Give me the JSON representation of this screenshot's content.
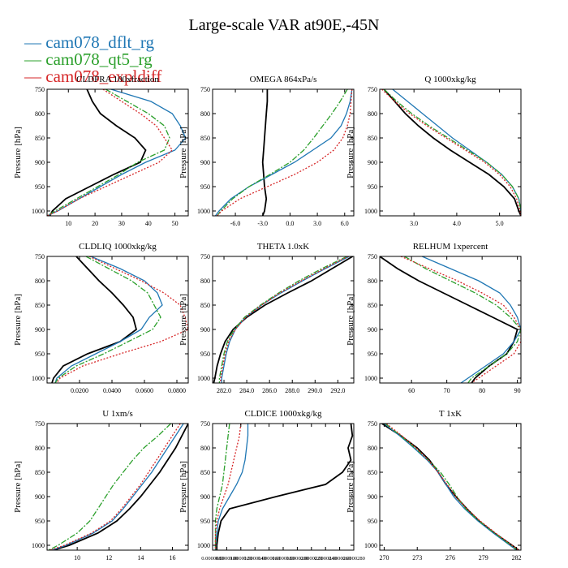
{
  "figure": {
    "title": "Large-scale VAR at90E,-45N",
    "ylabel": "Pressure [hPa]",
    "legend": [
      {
        "name": "cam078_dflt_rg",
        "color": "#1f77b4"
      },
      {
        "name": "cam078_qt5_rg",
        "color": "#2ca02c"
      },
      {
        "name": "cam078_expldiff",
        "color": "#d62728"
      }
    ]
  },
  "chart_data": [
    {
      "type": "line",
      "title": "CLDFRA  100xfraction",
      "ylabel": "Pressure [hPa]",
      "ylim": [
        1010,
        750
      ],
      "yticks": [
        750,
        800,
        850,
        900,
        950,
        1000
      ],
      "xlim": [
        2,
        55
      ],
      "xticks": [
        10,
        20,
        30,
        40,
        50
      ],
      "xticklabels": [
        "10",
        "20",
        "30",
        "40",
        "50"
      ],
      "y": [
        750,
        775,
        800,
        825,
        850,
        875,
        900,
        925,
        950,
        975,
        1000,
        1010
      ],
      "series": [
        {
          "name": "",
          "color": "#000000",
          "dash": "",
          "values": [
            17,
            19,
            22,
            28,
            35,
            39,
            37,
            27,
            18,
            9,
            4,
            3
          ]
        },
        {
          "name": "cam078_dflt_rg",
          "color": "#1f77b4",
          "dash": "",
          "values": [
            26,
            41,
            49,
            52,
            54,
            50,
            39,
            30,
            22,
            14,
            6,
            2
          ]
        },
        {
          "name": "cam078_qt5_rg",
          "color": "#2ca02c",
          "dash": "7,2,2,2",
          "values": [
            24,
            32,
            40,
            46,
            48,
            46,
            36,
            29,
            21,
            13,
            5,
            2
          ]
        },
        {
          "name": "cam078_expldiff",
          "color": "#d62728",
          "dash": "2,2",
          "values": [
            23,
            30,
            37,
            43,
            46,
            49,
            44,
            34,
            24,
            14,
            6,
            2
          ]
        }
      ]
    },
    {
      "type": "line",
      "title": "OMEGA  864xPa/s",
      "ylabel": "Pressure [hPa]",
      "ylim": [
        1010,
        750
      ],
      "yticks": [
        750,
        800,
        850,
        900,
        950,
        1000
      ],
      "xlim": [
        -8.5,
        7
      ],
      "xticks": [
        -6,
        -3,
        0,
        3,
        6
      ],
      "xticklabels": [
        "-6.0",
        "-3.0",
        "0.0",
        "3.0",
        "6.0"
      ],
      "y": [
        750,
        775,
        800,
        825,
        850,
        875,
        900,
        925,
        950,
        975,
        1000,
        1010
      ],
      "series": [
        {
          "name": "",
          "color": "#000000",
          "dash": "",
          "values": [
            -2.5,
            -2.5,
            -2.6,
            -2.7,
            -2.8,
            -2.9,
            -3.0,
            -2.9,
            -2.8,
            -2.6,
            -2.8,
            -3.0
          ]
        },
        {
          "name": "cam078_dflt_rg",
          "color": "#1f77b4",
          "dash": "",
          "values": [
            6.8,
            6.6,
            6.2,
            5.6,
            4.5,
            2.5,
            0.5,
            -2.0,
            -4.5,
            -6.5,
            -7.8,
            -8.2
          ]
        },
        {
          "name": "cam078_qt5_rg",
          "color": "#2ca02c",
          "dash": "7,2,2,2",
          "values": [
            6.3,
            5.5,
            4.6,
            3.6,
            2.6,
            1.5,
            0.0,
            -2.2,
            -4.5,
            -6.3,
            -7.6,
            -8.0
          ]
        },
        {
          "name": "cam078_expldiff",
          "color": "#d62728",
          "dash": "2,2",
          "values": [
            6.8,
            6.7,
            6.6,
            6.3,
            5.8,
            4.8,
            3.0,
            0.5,
            -2.5,
            -5.5,
            -7.5,
            -8.0
          ]
        }
      ]
    },
    {
      "type": "line",
      "title": "Q  1000xkg/kg",
      "ylabel": "Pressure [hPa]",
      "ylim": [
        1010,
        750
      ],
      "yticks": [
        750,
        800,
        850,
        900,
        950,
        1000
      ],
      "xlim": [
        2.2,
        5.5
      ],
      "xticks": [
        3.0,
        4.0,
        5.0
      ],
      "xticklabels": [
        "3.0",
        "4.0",
        "5.0"
      ],
      "y": [
        750,
        775,
        800,
        825,
        850,
        875,
        900,
        925,
        950,
        975,
        1000,
        1010
      ],
      "series": [
        {
          "name": "",
          "color": "#000000",
          "dash": "",
          "values": [
            2.3,
            2.55,
            2.8,
            3.1,
            3.45,
            3.85,
            4.3,
            4.75,
            5.1,
            5.35,
            5.45,
            5.5
          ]
        },
        {
          "name": "cam078_dflt_rg",
          "color": "#1f77b4",
          "dash": "",
          "values": [
            2.5,
            2.85,
            3.2,
            3.55,
            3.9,
            4.3,
            4.7,
            5.05,
            5.3,
            5.45,
            5.5,
            5.52
          ]
        },
        {
          "name": "cam078_qt5_rg",
          "color": "#2ca02c",
          "dash": "7,2,2,2",
          "values": [
            2.3,
            2.6,
            2.95,
            3.35,
            3.8,
            4.25,
            4.7,
            5.05,
            5.3,
            5.45,
            5.5,
            5.52
          ]
        },
        {
          "name": "cam078_expldiff",
          "color": "#d62728",
          "dash": "2,2",
          "values": [
            2.25,
            2.55,
            2.9,
            3.3,
            3.75,
            4.2,
            4.65,
            5.0,
            5.25,
            5.4,
            5.48,
            5.5
          ]
        }
      ]
    },
    {
      "type": "line",
      "title": "CLDLIQ  1000xkg/kg",
      "ylabel": "Pressure [hPa]",
      "ylim": [
        1010,
        750
      ],
      "yticks": [
        750,
        800,
        850,
        900,
        950,
        1000
      ],
      "xlim": [
        0.0,
        0.087
      ],
      "xticks": [
        0.02,
        0.04,
        0.06,
        0.08
      ],
      "xticklabels": [
        "0.0200",
        "0.0400",
        "0.0600",
        "0.0800"
      ],
      "y": [
        750,
        775,
        800,
        825,
        850,
        875,
        900,
        925,
        950,
        975,
        1000,
        1010
      ],
      "series": [
        {
          "name": "",
          "color": "#000000",
          "dash": "",
          "values": [
            0.018,
            0.025,
            0.032,
            0.04,
            0.047,
            0.053,
            0.055,
            0.045,
            0.025,
            0.01,
            0.004,
            0.003
          ]
        },
        {
          "name": "cam078_dflt_rg",
          "color": "#1f77b4",
          "dash": "",
          "values": [
            0.027,
            0.045,
            0.06,
            0.068,
            0.071,
            0.063,
            0.058,
            0.045,
            0.03,
            0.015,
            0.006,
            0.005
          ]
        },
        {
          "name": "cam078_qt5_rg",
          "color": "#2ca02c",
          "dash": "7,2,2,2",
          "values": [
            0.024,
            0.038,
            0.052,
            0.062,
            0.066,
            0.07,
            0.065,
            0.05,
            0.035,
            0.018,
            0.007,
            0.005
          ]
        },
        {
          "name": "cam078_expldiff",
          "color": "#d62728",
          "dash": "2,2",
          "values": [
            0.026,
            0.042,
            0.058,
            0.072,
            0.082,
            0.085,
            0.087,
            0.07,
            0.045,
            0.022,
            0.008,
            0.006
          ]
        }
      ]
    },
    {
      "type": "line",
      "title": "THETA  1.0xK",
      "ylabel": "Pressure [hPa]",
      "ylim": [
        1010,
        750
      ],
      "yticks": [
        750,
        800,
        850,
        900,
        950,
        1000
      ],
      "xlim": [
        281.0,
        293.4
      ],
      "xticks": [
        282,
        284,
        286,
        288,
        290,
        292
      ],
      "xticklabels": [
        "282.0",
        "284.0",
        "286.0",
        "288.0",
        "290.0",
        "292.0"
      ],
      "y": [
        750,
        775,
        800,
        825,
        850,
        875,
        900,
        925,
        950,
        975,
        1000,
        1010
      ],
      "series": [
        {
          "name": "",
          "color": "#000000",
          "dash": "",
          "values": [
            293.3,
            291.5,
            289.7,
            287.6,
            285.6,
            284.0,
            282.8,
            282.1,
            281.7,
            281.4,
            281.2,
            281.1
          ]
        },
        {
          "name": "cam078_dflt_rg",
          "color": "#1f77b4",
          "dash": "",
          "values": [
            293.0,
            290.9,
            288.9,
            287.0,
            285.3,
            283.9,
            283.0,
            282.5,
            282.2,
            282.0,
            281.8,
            281.8
          ]
        },
        {
          "name": "cam078_qt5_rg",
          "color": "#2ca02c",
          "dash": "7,2,2,2",
          "values": [
            292.8,
            290.6,
            288.6,
            286.8,
            285.2,
            283.8,
            282.9,
            282.3,
            282.0,
            281.8,
            281.6,
            281.6
          ]
        },
        {
          "name": "cam078_expldiff",
          "color": "#d62728",
          "dash": "2,2",
          "values": [
            292.9,
            290.8,
            288.8,
            286.9,
            285.3,
            283.9,
            283.0,
            282.4,
            282.1,
            281.9,
            281.7,
            281.7
          ]
        }
      ]
    },
    {
      "type": "line",
      "title": "RELHUM  1xpercent",
      "ylabel": "Pressure [hPa]",
      "ylim": [
        1010,
        750
      ],
      "yticks": [
        750,
        800,
        850,
        900,
        950,
        1000
      ],
      "xlim": [
        51,
        91
      ],
      "xticks": [
        60,
        70,
        80,
        90
      ],
      "xticklabels": [
        "60",
        "70",
        "80",
        "90"
      ],
      "y": [
        750,
        775,
        800,
        825,
        850,
        875,
        900,
        925,
        950,
        975,
        1000,
        1010
      ],
      "series": [
        {
          "name": "",
          "color": "#000000",
          "dash": "",
          "values": [
            51,
            56,
            62,
            69,
            76,
            83,
            90,
            89,
            87,
            82,
            78,
            77
          ]
        },
        {
          "name": "cam078_dflt_rg",
          "color": "#1f77b4",
          "dash": "",
          "values": [
            63,
            71,
            79,
            85,
            88,
            90,
            91,
            89,
            86,
            81,
            76,
            74
          ]
        },
        {
          "name": "cam078_qt5_rg",
          "color": "#2ca02c",
          "dash": "7,2,2,2",
          "values": [
            58,
            64,
            71,
            78,
            84,
            88,
            91,
            90,
            87,
            82,
            77,
            76
          ]
        },
        {
          "name": "cam078_expldiff",
          "color": "#d62728",
          "dash": "2,2",
          "values": [
            57,
            65,
            73,
            80,
            86,
            89,
            91,
            91,
            89,
            84,
            79,
            77
          ]
        }
      ]
    },
    {
      "type": "line",
      "title": "U  1xm/s",
      "ylabel": "Pressure [hPa]",
      "ylim": [
        1010,
        750
      ],
      "yticks": [
        750,
        800,
        850,
        900,
        950,
        1000
      ],
      "xlim": [
        8.1,
        17.0
      ],
      "xticks": [
        10,
        12,
        14,
        16
      ],
      "xticklabels": [
        "10",
        "12",
        "14",
        "16"
      ],
      "y": [
        750,
        775,
        800,
        825,
        850,
        875,
        900,
        925,
        950,
        975,
        1000,
        1010
      ],
      "series": [
        {
          "name": "",
          "color": "#000000",
          "dash": "",
          "values": [
            17.0,
            16.6,
            16.2,
            15.7,
            15.2,
            14.6,
            14.0,
            13.3,
            12.5,
            11.3,
            9.5,
            8.5
          ]
        },
        {
          "name": "cam078_dflt_rg",
          "color": "#1f77b4",
          "dash": "",
          "values": [
            16.7,
            16.2,
            15.7,
            15.2,
            14.7,
            14.1,
            13.5,
            12.9,
            12.2,
            11.0,
            9.3,
            8.4
          ]
        },
        {
          "name": "cam078_qt5_rg",
          "color": "#2ca02c",
          "dash": "7,2,2,2",
          "values": [
            15.9,
            15.1,
            14.2,
            13.5,
            12.9,
            12.3,
            11.8,
            11.3,
            10.8,
            10.0,
            8.8,
            8.2
          ]
        },
        {
          "name": "cam078_expldiff",
          "color": "#d62728",
          "dash": "2,2",
          "values": [
            16.5,
            16.0,
            15.5,
            15.0,
            14.5,
            14.0,
            13.4,
            12.8,
            12.1,
            10.9,
            9.2,
            8.3
          ]
        }
      ]
    },
    {
      "type": "line",
      "title": "CLDICE  1000xkg/kg",
      "ylabel": "Pressure [hPa]",
      "ylim": [
        1010,
        750
      ],
      "yticks": [
        750,
        800,
        850,
        900,
        950,
        1000
      ],
      "xlim": [
        0.0,
        1.0
      ],
      "xticks": [
        0.0,
        0.1,
        0.2,
        0.3,
        0.4,
        0.5,
        0.6,
        0.7,
        0.8,
        0.9,
        1.0
      ],
      "xticklabels": [
        "0.0000080",
        "0.0000100",
        "0.0000120",
        "0.0000140",
        "0.0000160",
        "0.0000180",
        "0.0000200",
        "0.0000220",
        "0.0000240",
        "0.0000260",
        "0.0000280"
      ],
      "y": [
        750,
        775,
        800,
        825,
        850,
        875,
        900,
        925,
        950,
        975,
        1000,
        1010
      ],
      "series": [
        {
          "name": "",
          "color": "#000000",
          "dash": "",
          "values": [
            0.98,
            0.99,
            0.96,
            0.98,
            0.92,
            0.8,
            0.45,
            0.12,
            0.06,
            0.04,
            0.03,
            0.03
          ]
        },
        {
          "name": "cam078_dflt_rg",
          "color": "#1f77b4",
          "dash": "",
          "values": [
            0.25,
            0.25,
            0.24,
            0.23,
            0.21,
            0.17,
            0.12,
            0.07,
            0.04,
            0.03,
            0.02,
            0.02
          ]
        },
        {
          "name": "cam078_qt5_rg",
          "color": "#2ca02c",
          "dash": "7,2,2,2",
          "values": [
            0.12,
            0.11,
            0.1,
            0.09,
            0.08,
            0.07,
            0.05,
            0.03,
            0.02,
            0.02,
            0.02,
            0.02
          ]
        },
        {
          "name": "cam078_expldiff",
          "color": "#d62728",
          "dash": "2,2",
          "values": [
            0.2,
            0.19,
            0.17,
            0.15,
            0.13,
            0.11,
            0.08,
            0.05,
            0.03,
            0.02,
            0.02,
            0.02
          ]
        }
      ]
    },
    {
      "type": "line",
      "title": "T  1xK",
      "ylabel": "Pressure [hPa]",
      "ylim": [
        1010,
        750
      ],
      "yticks": [
        750,
        800,
        850,
        900,
        950,
        1000
      ],
      "xlim": [
        269.6,
        282.4
      ],
      "xticks": [
        270,
        273,
        276,
        279,
        282
      ],
      "xticklabels": [
        "270",
        "273",
        "276",
        "279",
        "282"
      ],
      "y": [
        750,
        775,
        800,
        825,
        850,
        875,
        900,
        925,
        950,
        975,
        1000,
        1010
      ],
      "series": [
        {
          "name": "",
          "color": "#000000",
          "dash": "",
          "values": [
            269.8,
            271.5,
            273.0,
            274.1,
            274.9,
            275.6,
            276.5,
            277.5,
            278.6,
            280.0,
            281.6,
            282.2
          ]
        },
        {
          "name": "cam078_dflt_rg",
          "color": "#1f77b4",
          "dash": "",
          "values": [
            270.0,
            271.4,
            272.7,
            273.9,
            274.9,
            275.6,
            276.3,
            277.3,
            278.5,
            279.9,
            281.4,
            282.0
          ]
        },
        {
          "name": "cam078_qt5_rg",
          "color": "#2ca02c",
          "dash": "7,2,2,2",
          "values": [
            270.1,
            271.5,
            272.8,
            274.0,
            275.1,
            275.9,
            276.6,
            277.4,
            278.6,
            280.0,
            281.5,
            282.1
          ]
        },
        {
          "name": "cam078_expldiff",
          "color": "#d62728",
          "dash": "2,2",
          "values": [
            270.2,
            271.6,
            272.9,
            274.0,
            274.9,
            275.7,
            276.5,
            277.5,
            278.7,
            280.1,
            281.6,
            282.2
          ]
        }
      ]
    }
  ]
}
